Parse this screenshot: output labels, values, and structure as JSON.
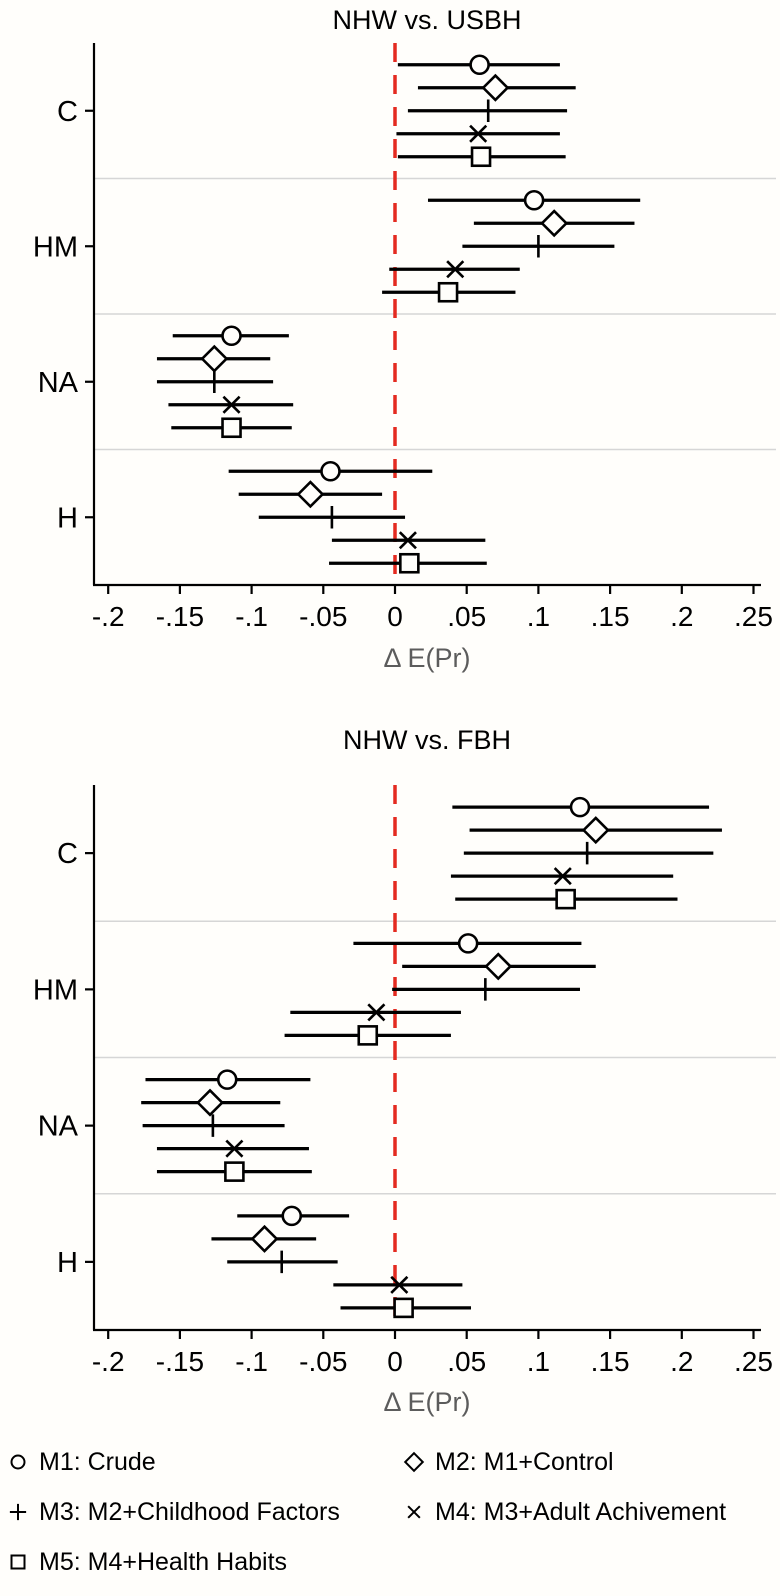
{
  "styles": {
    "background": "#fffefb",
    "ref_line_color": "#e42a20",
    "separator_color": "#d6d6d6",
    "axis_color": "#000000",
    "marker_color": "#000000",
    "xlabel_color": "#5c5c5c"
  },
  "legend": {
    "items": [
      {
        "marker": "circle",
        "label": "M1: Crude"
      },
      {
        "marker": "diamond",
        "label": "M2: M1+Control"
      },
      {
        "marker": "plus",
        "label": "M3: M2+Childhood Factors"
      },
      {
        "marker": "x",
        "label": "M4: M3+Adult Achivement"
      },
      {
        "marker": "square",
        "label": "M5: M4+Health Habits"
      }
    ]
  },
  "chart_data": [
    {
      "type": "forest",
      "title": "NHW vs. USBH",
      "xlabel": "Δ E(Pr)",
      "categories": [
        "C",
        "HM",
        "NA",
        "H"
      ],
      "xlim": [
        -0.21,
        0.255
      ],
      "ref_line": 0,
      "grid": "group-separators",
      "xticks": [
        -0.2,
        -0.15,
        -0.1,
        -0.05,
        0,
        0.05,
        0.1,
        0.15,
        0.2,
        0.25
      ],
      "xtick_labels": [
        "-.2",
        "-.15",
        "-.1",
        "-.05",
        "0",
        ".05",
        ".1",
        ".15",
        ".2",
        ".25"
      ],
      "series": [
        {
          "name": "M1: Crude",
          "marker": "circle",
          "points": [
            {
              "est": 0.059,
              "lo": 0.002,
              "hi": 0.115
            },
            {
              "est": 0.097,
              "lo": 0.023,
              "hi": 0.171
            },
            {
              "est": -0.114,
              "lo": -0.155,
              "hi": -0.074
            },
            {
              "est": -0.045,
              "lo": -0.116,
              "hi": 0.026
            }
          ]
        },
        {
          "name": "M2: M1+Control",
          "marker": "diamond",
          "points": [
            {
              "est": 0.07,
              "lo": 0.016,
              "hi": 0.126
            },
            {
              "est": 0.111,
              "lo": 0.055,
              "hi": 0.167
            },
            {
              "est": -0.126,
              "lo": -0.166,
              "hi": -0.087
            },
            {
              "est": -0.059,
              "lo": -0.109,
              "hi": -0.009
            }
          ]
        },
        {
          "name": "M3: M2+Childhood Factors",
          "marker": "plus",
          "points": [
            {
              "est": 0.065,
              "lo": 0.009,
              "hi": 0.12
            },
            {
              "est": 0.1,
              "lo": 0.047,
              "hi": 0.153
            },
            {
              "est": -0.126,
              "lo": -0.166,
              "hi": -0.085
            },
            {
              "est": -0.044,
              "lo": -0.095,
              "hi": 0.007
            }
          ]
        },
        {
          "name": "M4: M3+Adult Achivement",
          "marker": "x",
          "points": [
            {
              "est": 0.058,
              "lo": 0.001,
              "hi": 0.115
            },
            {
              "est": 0.042,
              "lo": -0.004,
              "hi": 0.087
            },
            {
              "est": -0.114,
              "lo": -0.158,
              "hi": -0.071
            },
            {
              "est": 0.009,
              "lo": -0.044,
              "hi": 0.063
            }
          ]
        },
        {
          "name": "M5: M4+Health Habits",
          "marker": "square",
          "points": [
            {
              "est": 0.06,
              "lo": 0.002,
              "hi": 0.119
            },
            {
              "est": 0.037,
              "lo": -0.009,
              "hi": 0.084
            },
            {
              "est": -0.114,
              "lo": -0.156,
              "hi": -0.072
            },
            {
              "est": 0.01,
              "lo": -0.046,
              "hi": 0.064
            }
          ]
        }
      ]
    },
    {
      "type": "forest",
      "title": "NHW vs. FBH",
      "xlabel": "Δ E(Pr)",
      "categories": [
        "C",
        "HM",
        "NA",
        "H"
      ],
      "xlim": [
        -0.21,
        0.255
      ],
      "ref_line": 0,
      "grid": "group-separators",
      "xticks": [
        -0.2,
        -0.15,
        -0.1,
        -0.05,
        0,
        0.05,
        0.1,
        0.15,
        0.2,
        0.25
      ],
      "xtick_labels": [
        "-.2",
        "-.15",
        "-.1",
        "-.05",
        "0",
        ".05",
        ".1",
        ".15",
        ".2",
        ".25"
      ],
      "series": [
        {
          "name": "M1: Crude",
          "marker": "circle",
          "points": [
            {
              "est": 0.129,
              "lo": 0.04,
              "hi": 0.219
            },
            {
              "est": 0.051,
              "lo": -0.029,
              "hi": 0.13
            },
            {
              "est": -0.117,
              "lo": -0.174,
              "hi": -0.059
            },
            {
              "est": -0.072,
              "lo": -0.11,
              "hi": -0.032
            }
          ]
        },
        {
          "name": "M2: M1+Control",
          "marker": "diamond",
          "points": [
            {
              "est": 0.14,
              "lo": 0.052,
              "hi": 0.228
            },
            {
              "est": 0.072,
              "lo": 0.005,
              "hi": 0.14
            },
            {
              "est": -0.129,
              "lo": -0.177,
              "hi": -0.08
            },
            {
              "est": -0.091,
              "lo": -0.128,
              "hi": -0.055
            }
          ]
        },
        {
          "name": "M3: M2+Childhood Factors",
          "marker": "plus",
          "points": [
            {
              "est": 0.134,
              "lo": 0.048,
              "hi": 0.222
            },
            {
              "est": 0.063,
              "lo": -0.002,
              "hi": 0.129
            },
            {
              "est": -0.127,
              "lo": -0.176,
              "hi": -0.077
            },
            {
              "est": -0.079,
              "lo": -0.117,
              "hi": -0.04
            }
          ]
        },
        {
          "name": "M4: M3+Adult Achivement",
          "marker": "x",
          "points": [
            {
              "est": 0.117,
              "lo": 0.039,
              "hi": 0.194
            },
            {
              "est": -0.013,
              "lo": -0.073,
              "hi": 0.046
            },
            {
              "est": -0.112,
              "lo": -0.166,
              "hi": -0.06
            },
            {
              "est": 0.003,
              "lo": -0.043,
              "hi": 0.047
            }
          ]
        },
        {
          "name": "M5: M4+Health Habits",
          "marker": "square",
          "points": [
            {
              "est": 0.119,
              "lo": 0.042,
              "hi": 0.197
            },
            {
              "est": -0.019,
              "lo": -0.077,
              "hi": 0.039
            },
            {
              "est": -0.112,
              "lo": -0.166,
              "hi": -0.058
            },
            {
              "est": 0.006,
              "lo": -0.038,
              "hi": 0.053
            }
          ]
        }
      ]
    }
  ]
}
